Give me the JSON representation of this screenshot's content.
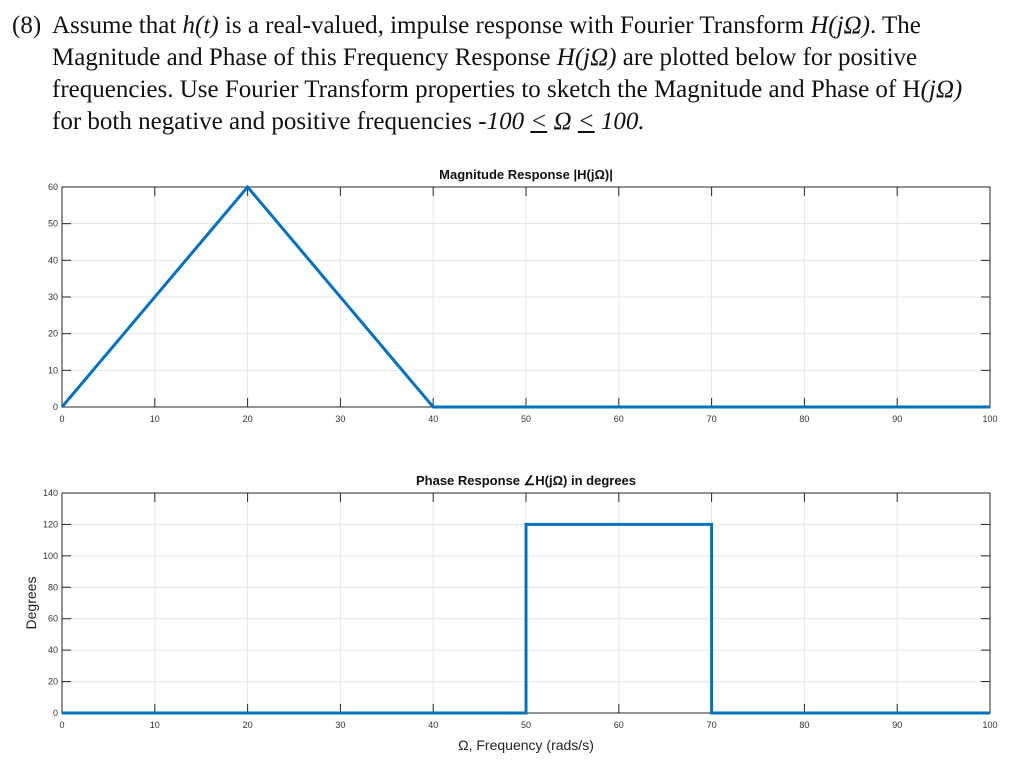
{
  "problem": {
    "number": "(8)",
    "line1_a": "Assume that ",
    "line1_b": "h(t)",
    "line1_c": " is a real-valued, impulse response with Fourier Transform ",
    "line1_d": "H(jΩ)",
    "line1_e": ". The",
    "line2_a": "Magnitude and Phase of this Frequency Response ",
    "line2_b": "H(jΩ)",
    "line2_c": " are plotted below for positive",
    "line3_a": "frequencies. Use Fourier Transform properties to sketch the Magnitude and Phase of H",
    "line3_b": "(jΩ)",
    "line4_a": "for both negative and positive frequencies ",
    "line4_b": "-100 ",
    "line4_c": "<",
    "line4_d": " Ω ",
    "line4_e": "<",
    "line4_f": " 100."
  },
  "chart_data": [
    {
      "type": "line",
      "title": "Magnitude Response |H(jΩ)|",
      "xlabel": "",
      "ylabel": "",
      "x": [
        0,
        20,
        40,
        100
      ],
      "series": [
        {
          "name": "|H(jΩ)|",
          "values": [
            0,
            60,
            0,
            0
          ],
          "color": "#0072BD"
        }
      ],
      "xlim": [
        0,
        100
      ],
      "ylim": [
        0,
        60
      ],
      "xticks": [
        0,
        10,
        20,
        30,
        40,
        50,
        60,
        70,
        80,
        90,
        100
      ],
      "yticks": [
        0,
        10,
        20,
        30,
        40,
        50,
        60
      ],
      "grid": true
    },
    {
      "type": "line",
      "title": "Phase Response ∠H(jΩ) in degrees",
      "xlabel": "Ω, Frequency (rads/s)",
      "ylabel": "Degrees",
      "x": [
        0,
        50,
        50,
        70,
        70,
        100
      ],
      "series": [
        {
          "name": "∠H(jΩ)",
          "values": [
            0,
            0,
            120,
            120,
            0,
            0
          ],
          "color": "#0072BD"
        }
      ],
      "xlim": [
        0,
        100
      ],
      "ylim": [
        0,
        140
      ],
      "xticks": [
        0,
        10,
        20,
        30,
        40,
        50,
        60,
        70,
        80,
        90,
        100
      ],
      "yticks": [
        0,
        20,
        40,
        60,
        80,
        100,
        120,
        140
      ],
      "grid": true
    }
  ]
}
